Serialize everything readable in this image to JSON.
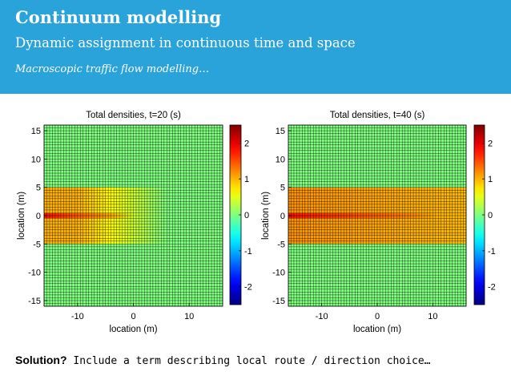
{
  "header": {
    "title": "Continuum modelling",
    "subtitle": "Dynamic assignment in continuous time and space",
    "tagline": "Macroscopic traffic flow modelling…"
  },
  "footer": {
    "label": "Solution?",
    "text": "Include a term describing local route / direction choice…"
  },
  "colors": {
    "header_bg": "#2aa2da",
    "background_density": "#8fd98a",
    "grid_line": "#000000"
  },
  "chart_data": [
    {
      "type": "heatmap",
      "title": "Total densities, t=20 (s)",
      "xlabel": "location (m)",
      "ylabel": "location (m)",
      "xlim": [
        -16,
        16
      ],
      "ylim": [
        -16,
        16
      ],
      "xticks": [
        -10,
        0,
        10
      ],
      "yticks": [
        -15,
        -10,
        -5,
        0,
        5,
        10,
        15
      ],
      "colorbar": {
        "range": [
          -2.5,
          2.5
        ],
        "ticks": [
          -2,
          -1,
          0,
          1,
          2
        ]
      },
      "background_value": 0.0,
      "band": {
        "y_range": [
          -5,
          5
        ],
        "x_range": [
          -16,
          16
        ],
        "value_at_left": 1.0,
        "value_at_right": 0.0,
        "fade_start_x": -10,
        "fade_end_x": 6
      },
      "centerline": {
        "y": 0,
        "x_range": [
          -16,
          0
        ],
        "value_at_left": 1.8,
        "value_at_right": 1.1
      },
      "grid": true
    },
    {
      "type": "heatmap",
      "title": "Total densities, t=40 (s)",
      "xlabel": "location (m)",
      "ylabel": "location (m)",
      "xlim": [
        -16,
        16
      ],
      "ylim": [
        -16,
        16
      ],
      "xticks": [
        -10,
        0,
        10
      ],
      "yticks": [
        -15,
        -10,
        -5,
        0,
        5,
        10,
        15
      ],
      "colorbar": {
        "range": [
          -2.5,
          2.5
        ],
        "ticks": [
          -2,
          -1,
          0,
          1,
          2
        ]
      },
      "background_value": 0.0,
      "band": {
        "y_range": [
          -5,
          5
        ],
        "x_range": [
          -16,
          16
        ],
        "value_at_left": 1.15,
        "value_at_right": 0.95,
        "fade_start_x": -16,
        "fade_end_x": 16
      },
      "centerline": {
        "y": 0,
        "x_range": [
          -16,
          11
        ],
        "value_at_left": 1.8,
        "value_at_right": 1.3
      },
      "grid": true
    }
  ]
}
